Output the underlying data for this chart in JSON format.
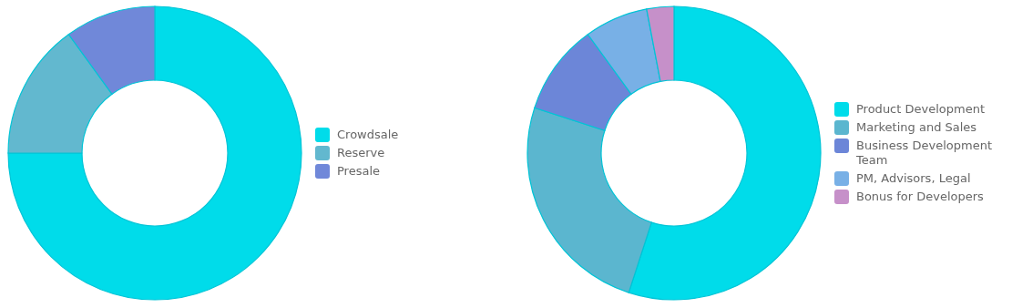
{
  "chart_data": [
    {
      "type": "donut",
      "categories": [
        "Crowdsale",
        "Reserve",
        "Presale"
      ],
      "values": [
        75,
        15,
        10
      ],
      "colors": [
        "#00dcea",
        "#62b8cf",
        "#7088d9"
      ],
      "legend": "right"
    },
    {
      "type": "donut",
      "categories": [
        "Product Development",
        "Marketing and Sales",
        "Business Development Team",
        "PM, Advisors, Legal",
        "Bonus for Developers"
      ],
      "values": [
        55,
        25,
        10,
        7,
        3
      ],
      "colors": [
        "#00dcea",
        "#5bb6cf",
        "#6c86d8",
        "#78b0e6",
        "#c690c9"
      ],
      "legend": "right"
    }
  ]
}
